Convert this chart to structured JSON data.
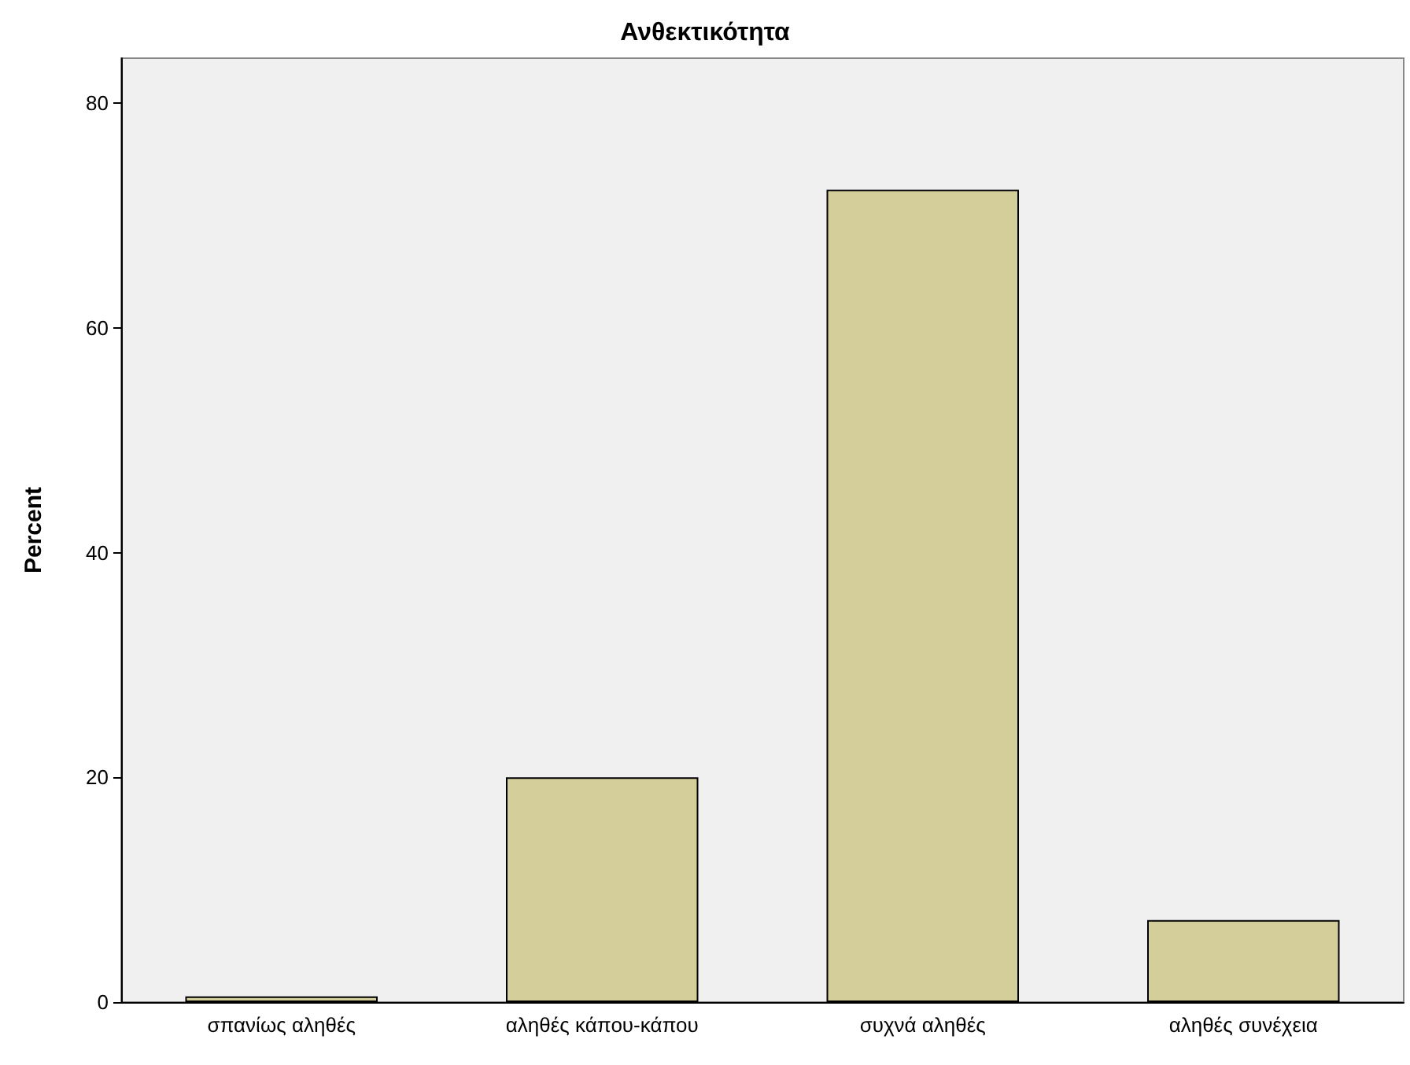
{
  "chart_data": {
    "type": "bar",
    "title": "Ανθεκτικότητα",
    "ylabel": "Percent",
    "categories": [
      "σπανίως αληθές",
      "αληθές κάπου-κάπου",
      "συχνά αληθές",
      "αληθές συνέχεια"
    ],
    "values": [
      0.5,
      20.0,
      72.3,
      7.3
    ],
    "color": "#d4cf9a",
    "ylim": [
      0,
      84
    ],
    "yticks": [
      0,
      20,
      40,
      60,
      80
    ],
    "grid": false
  }
}
